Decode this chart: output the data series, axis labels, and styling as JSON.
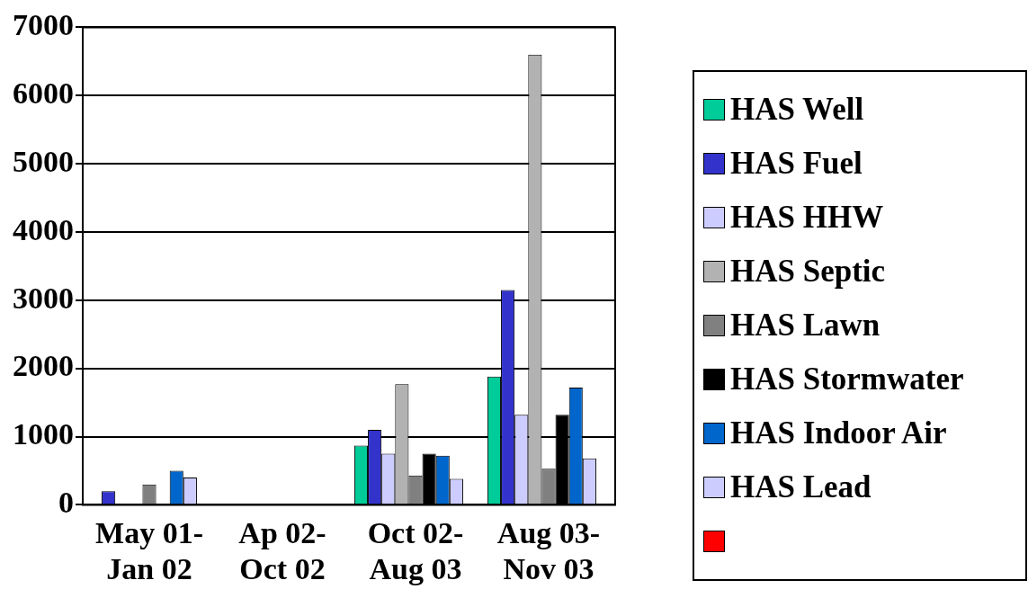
{
  "chart_data": {
    "type": "bar",
    "categories": [
      "May 01-Jan 02",
      "Ap 02-Oct 02",
      "Oct 02-Aug 03",
      "Aug 03-Nov 03"
    ],
    "series": [
      {
        "name": "HAS Well",
        "color": "#00cc99",
        "values": [
          0,
          0,
          870,
          1880
        ]
      },
      {
        "name": "HAS Fuel",
        "color": "#3333cc",
        "values": [
          200,
          0,
          1100,
          3150
        ]
      },
      {
        "name": "HAS HHW",
        "color": "#ccccff",
        "values": [
          0,
          0,
          750,
          1320
        ]
      },
      {
        "name": "HAS Septic",
        "color": "#b2b2b2",
        "values": [
          0,
          0,
          1770,
          6600
        ]
      },
      {
        "name": "HAS Lawn",
        "color": "#808080",
        "values": [
          300,
          0,
          430,
          530
        ]
      },
      {
        "name": "HAS Stormwater",
        "color": "#000000",
        "values": [
          0,
          0,
          750,
          1320
        ]
      },
      {
        "name": "HAS Indoor Air",
        "color": "#0066cc",
        "values": [
          500,
          0,
          720,
          1720
        ]
      },
      {
        "name": "HAS Lead",
        "color": "#ccccff",
        "values": [
          400,
          0,
          380,
          680
        ]
      },
      {
        "color": "#ff0000",
        "values": [
          0,
          0,
          0,
          0
        ]
      }
    ],
    "ylim": [
      0,
      7000
    ],
    "yticks": [
      0,
      1000,
      2000,
      3000,
      4000,
      5000,
      6000,
      7000
    ],
    "grid": "y",
    "legend": "right"
  }
}
